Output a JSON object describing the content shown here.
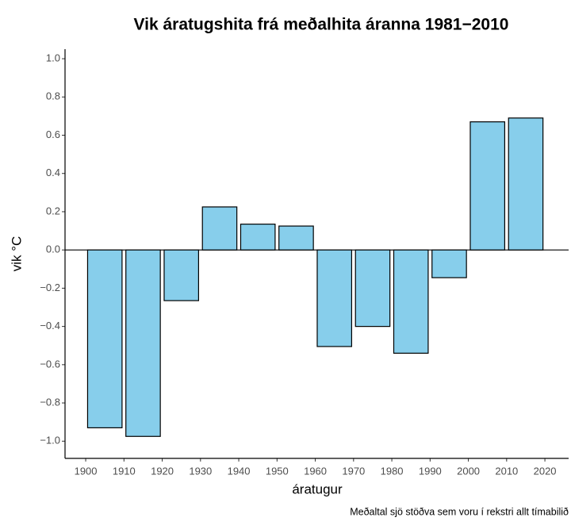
{
  "chart_data": {
    "type": "bar",
    "title": "Vik áratugshita frá meðalhita áranna 1981−2010",
    "xlabel": "áratugur",
    "ylabel": "vik °C",
    "caption": "Meðaltal sjö stöðva sem voru í rekstri allt tímabilið",
    "x": [
      1905,
      1915,
      1925,
      1935,
      1945,
      1955,
      1965,
      1975,
      1985,
      1995,
      2005,
      2015
    ],
    "values": [
      -0.93,
      -0.975,
      -0.265,
      0.225,
      0.135,
      0.125,
      -0.505,
      -0.4,
      -0.54,
      -0.145,
      0.67,
      0.69
    ],
    "bar_width": 9,
    "color": "#87ceeb",
    "edge_color": "#000000",
    "xlim": [
      1894.6,
      2026.2
    ],
    "xticks": [
      1900,
      1910,
      1920,
      1930,
      1940,
      1950,
      1960,
      1970,
      1980,
      1990,
      2000,
      2010,
      2020
    ],
    "ylim": [
      -1.09,
      1.05
    ],
    "yticks": [
      {
        "value": -1.0,
        "label": "−1.0"
      },
      {
        "value": -0.8,
        "label": "−0.8"
      },
      {
        "value": -0.6,
        "label": "−0.6"
      },
      {
        "value": -0.4,
        "label": "−0.4"
      },
      {
        "value": -0.2,
        "label": "−0.2"
      },
      {
        "value": 0,
        "label": "0.0"
      },
      0.2,
      0.4,
      0.6,
      0.8,
      {
        "value": 1.0,
        "label": "1.0"
      }
    ],
    "grid": false
  }
}
